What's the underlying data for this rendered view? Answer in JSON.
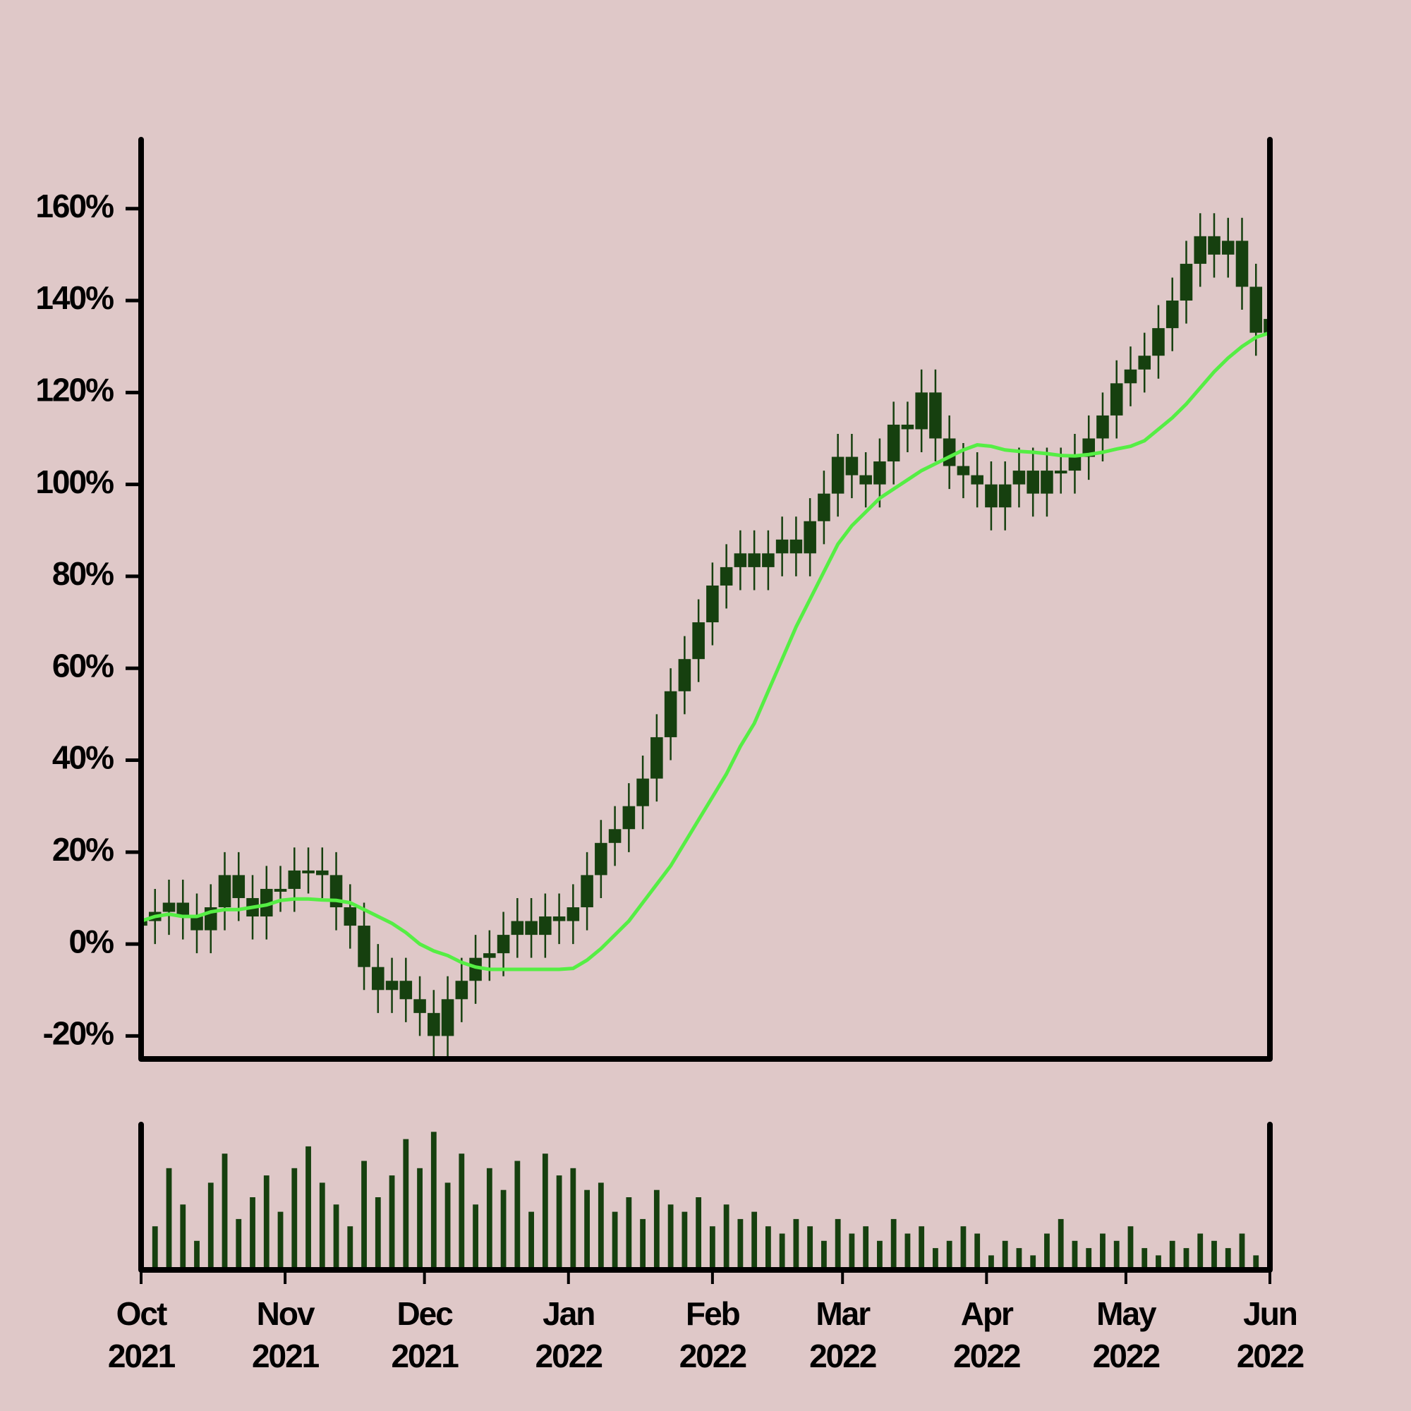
{
  "chart_data": {
    "type": "candlestick",
    "candle_color": "#16400f",
    "background": "#dfc8c8",
    "x": [
      0,
      3,
      6,
      9,
      12,
      15,
      18,
      21,
      24,
      27,
      30,
      33,
      36,
      39,
      42,
      45,
      48,
      51,
      54,
      57,
      60,
      63,
      66,
      69,
      72,
      75,
      78,
      81,
      84,
      87,
      90,
      93,
      96,
      99,
      102,
      105,
      108,
      111,
      114,
      117,
      120,
      123,
      126,
      129,
      132,
      135,
      138,
      141,
      144,
      147,
      150,
      153,
      156,
      159,
      162,
      165,
      168,
      171,
      174,
      177,
      180,
      183,
      186,
      189,
      192,
      195,
      198,
      201,
      204,
      207,
      210,
      213,
      216,
      219,
      222,
      225,
      228,
      231,
      234,
      237,
      240,
      243
    ],
    "open": [
      4,
      5,
      7,
      9,
      6,
      3,
      8,
      15,
      10,
      6,
      12,
      12,
      16,
      16,
      15,
      8,
      4,
      -5,
      -10,
      -8,
      -12,
      -15,
      -20,
      -12,
      -8,
      -3,
      -2,
      2,
      5,
      2,
      6,
      5,
      8,
      15,
      22,
      25,
      30,
      36,
      45,
      55,
      62,
      70,
      78,
      82,
      85,
      82,
      85,
      88,
      85,
      92,
      98,
      106,
      102,
      100,
      105,
      113,
      112,
      120,
      110,
      104,
      102,
      100,
      95,
      100,
      103,
      98,
      103,
      103,
      106,
      110,
      115,
      122,
      125,
      128,
      134,
      140,
      148,
      154,
      150,
      153,
      143,
      133
    ],
    "high": [
      10,
      12,
      14,
      14,
      11,
      13,
      20,
      20,
      15,
      17,
      17,
      21,
      21,
      21,
      20,
      13,
      9,
      0,
      -3,
      -3,
      -7,
      -10,
      -7,
      -3,
      2,
      3,
      7,
      10,
      10,
      11,
      11,
      13,
      20,
      27,
      30,
      35,
      41,
      50,
      60,
      67,
      75,
      83,
      87,
      90,
      90,
      90,
      93,
      93,
      97,
      103,
      111,
      111,
      107,
      110,
      118,
      118,
      125,
      125,
      115,
      109,
      107,
      105,
      105,
      108,
      108,
      108,
      108,
      111,
      115,
      120,
      127,
      130,
      133,
      139,
      145,
      153,
      159,
      159,
      158,
      158,
      148,
      141
    ],
    "low": [
      -1,
      0,
      2,
      1,
      -2,
      -2,
      3,
      5,
      1,
      1,
      7,
      7,
      11,
      10,
      3,
      -1,
      -10,
      -15,
      -15,
      -17,
      -20,
      -25,
      -25,
      -17,
      -13,
      -8,
      -7,
      -3,
      -3,
      -3,
      0,
      0,
      3,
      10,
      17,
      20,
      25,
      31,
      40,
      50,
      57,
      65,
      73,
      77,
      77,
      77,
      80,
      80,
      80,
      87,
      93,
      97,
      95,
      95,
      100,
      107,
      107,
      105,
      99,
      97,
      95,
      90,
      90,
      95,
      93,
      93,
      98,
      98,
      101,
      105,
      110,
      117,
      120,
      123,
      129,
      135,
      143,
      145,
      145,
      138,
      128,
      128
    ],
    "close": [
      5,
      7,
      9,
      6,
      3,
      8,
      15,
      10,
      6,
      12,
      12,
      16,
      16,
      15,
      8,
      4,
      -5,
      -10,
      -8,
      -12,
      -15,
      -20,
      -12,
      -8,
      -3,
      -2,
      2,
      5,
      2,
      6,
      5,
      8,
      15,
      22,
      25,
      30,
      36,
      45,
      55,
      62,
      70,
      78,
      82,
      85,
      82,
      85,
      88,
      85,
      92,
      98,
      106,
      102,
      100,
      105,
      113,
      112,
      120,
      110,
      104,
      102,
      100,
      95,
      100,
      103,
      98,
      103,
      103,
      106,
      110,
      115,
      122,
      125,
      128,
      134,
      140,
      148,
      154,
      150,
      153,
      143,
      133,
      136
    ],
    "moving_average": {
      "color": "#55ee44",
      "values": [
        5,
        6,
        6.5,
        6,
        6,
        7,
        7.5,
        7.5,
        8,
        8.5,
        9.5,
        9.8,
        9.8,
        9.6,
        9.5,
        9,
        7.5,
        6,
        4.5,
        2.5,
        0,
        -1.5,
        -2.5,
        -4,
        -5,
        -5.5,
        -5.5,
        -5.5,
        -5.5,
        -5.5,
        -5.5,
        -5.3,
        -3.5,
        -1,
        2,
        5,
        9,
        13,
        17,
        22,
        27,
        32,
        37,
        43,
        48,
        55,
        62,
        69,
        75,
        81,
        87,
        91,
        94,
        97,
        99,
        101,
        103,
        104.5,
        106,
        107.5,
        108.6,
        108.3,
        107.5,
        107.2,
        107,
        106.7,
        106.3,
        106.2,
        106.5,
        107,
        107.7,
        108.3,
        109.5,
        112,
        114.5,
        117.5,
        121,
        124.5,
        127.5,
        130,
        132,
        133
      ]
    },
    "volume": {
      "color": "#16400f",
      "ylim": [
        0,
        100
      ],
      "values": [
        55,
        30,
        70,
        45,
        20,
        60,
        80,
        35,
        50,
        65,
        40,
        70,
        85,
        60,
        45,
        30,
        75,
        50,
        65,
        90,
        70,
        95,
        60,
        80,
        45,
        70,
        55,
        75,
        40,
        80,
        65,
        70,
        55,
        60,
        40,
        50,
        35,
        55,
        45,
        40,
        50,
        30,
        45,
        35,
        40,
        30,
        25,
        35,
        30,
        20,
        35,
        25,
        30,
        20,
        35,
        25,
        30,
        15,
        20,
        30,
        25,
        10,
        20,
        15,
        10,
        25,
        35,
        20,
        15,
        25,
        20,
        30,
        15,
        10,
        20,
        15,
        25,
        20,
        15,
        25,
        10,
        5
      ]
    },
    "xlim": [
      0,
      243
    ],
    "xticks": [
      {
        "value": 0,
        "label": "Oct 2021"
      },
      {
        "value": 31,
        "label": "Nov 2021"
      },
      {
        "value": 61,
        "label": "Dec 2021"
      },
      {
        "value": 92,
        "label": "Jan 2022"
      },
      {
        "value": 123,
        "label": "Feb 2022"
      },
      {
        "value": 151,
        "label": "Mar 2022"
      },
      {
        "value": 182,
        "label": "Apr 2022"
      },
      {
        "value": 212,
        "label": "May 2022"
      },
      {
        "value": 243,
        "label": "Jun 2022"
      }
    ],
    "ylim": [
      -25,
      175
    ],
    "yticks": [
      {
        "value": -20,
        "label": "-20%"
      },
      {
        "value": 0,
        "label": "0%"
      },
      {
        "value": 20,
        "label": "20%"
      },
      {
        "value": 40,
        "label": "40%"
      },
      {
        "value": 60,
        "label": "60%"
      },
      {
        "value": 80,
        "label": "80%"
      },
      {
        "value": 100,
        "label": "100%"
      },
      {
        "value": 120,
        "label": "120%"
      },
      {
        "value": 140,
        "label": "140%"
      },
      {
        "value": 160,
        "label": "160%"
      }
    ]
  }
}
